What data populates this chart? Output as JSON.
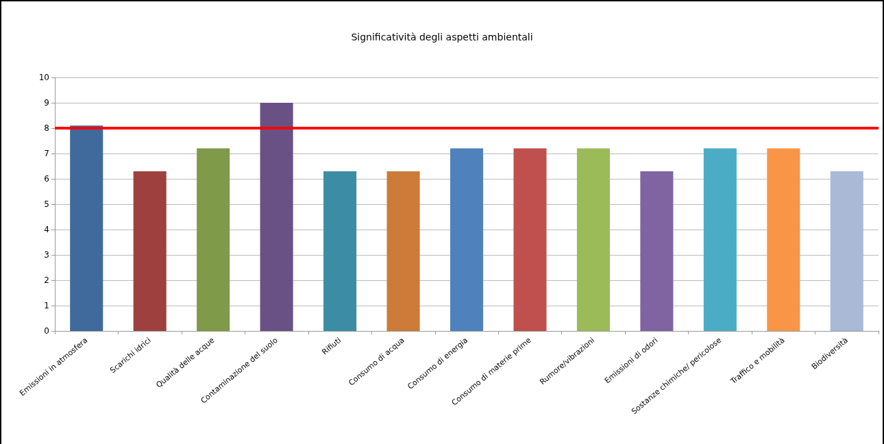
{
  "chart_data": {
    "type": "bar",
    "title": "Significatività degli aspetti ambientali",
    "categories": [
      "Emissioni in atmosfera",
      "Scarichi idrici",
      "Qualità delle acque",
      "Contaminazione del suolo",
      "Rifiuti",
      "Consumo di acqua",
      "Consumo di energia",
      "Consumo di materie prime",
      "Rumore/vibrazioni",
      "Emissioni di odori",
      "Sostanze chimiche/ pericolose",
      "Traffico e mobilità",
      "Biodiversità"
    ],
    "values": [
      8.1,
      6.3,
      7.2,
      9,
      6.3,
      6.3,
      7.2,
      7.2,
      7.2,
      6.3,
      7.2,
      7.2,
      6.3
    ],
    "colors": [
      "#3f6a9b",
      "#9e413e",
      "#7f9a48",
      "#695185",
      "#3c8da3",
      "#cc7b38",
      "#4f81bd",
      "#c0504d",
      "#9bbb59",
      "#8064a2",
      "#4bacc6",
      "#f79646",
      "#a9b9d6"
    ],
    "ylim": [
      0,
      10
    ],
    "yticks": [
      0,
      1,
      2,
      3,
      4,
      5,
      6,
      7,
      8,
      9,
      10
    ],
    "grid": "y",
    "ref_lines": [
      {
        "axis": "y",
        "value": 8,
        "color": "#ff0000",
        "line_style": "solid"
      }
    ]
  }
}
